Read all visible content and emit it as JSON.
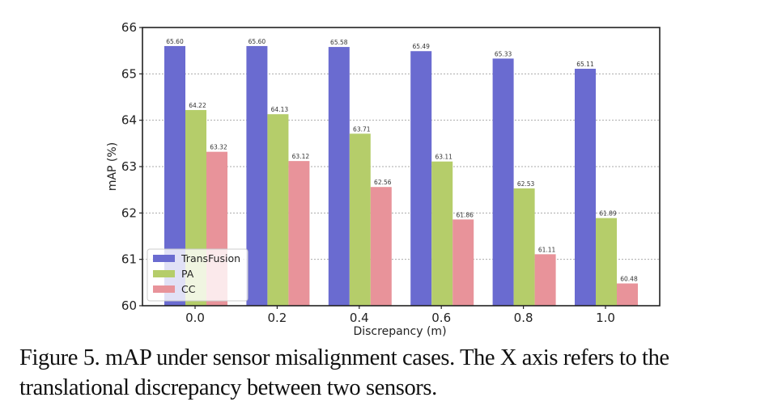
{
  "chart_data": {
    "type": "bar",
    "title": "",
    "xlabel": "Discrepancy (m)",
    "ylabel": "mAP (%)",
    "ylim": [
      60,
      66
    ],
    "yticks": [
      "60",
      "61",
      "62",
      "63",
      "64",
      "65",
      "66"
    ],
    "categories": [
      "0.0",
      "0.2",
      "0.4",
      "0.6",
      "0.8",
      "1.0"
    ],
    "grid": "horizontal dashed",
    "legend_position": "lower-left",
    "series": [
      {
        "name": "TransFusion",
        "color": "#6a6bd0",
        "values": [
          65.6,
          65.6,
          65.58,
          65.49,
          65.33,
          65.11
        ],
        "labels": [
          "65.60",
          "65.60",
          "65.58",
          "65.49",
          "65.33",
          "65.11"
        ]
      },
      {
        "name": "PA",
        "color": "#b5cd6a",
        "values": [
          64.22,
          64.13,
          63.71,
          63.11,
          62.53,
          61.89
        ],
        "labels": [
          "64.22",
          "64.13",
          "63.71",
          "63.11",
          "62.53",
          "61.89"
        ]
      },
      {
        "name": "CC",
        "color": "#e8939a",
        "values": [
          63.32,
          63.12,
          62.56,
          61.86,
          61.11,
          60.48
        ],
        "labels": [
          "63.32",
          "63.12",
          "62.56",
          "61.86",
          "61.11",
          "60.48"
        ]
      }
    ]
  },
  "caption": "Figure 5. mAP under sensor misalignment cases.  The X axis refers to the translational discrepancy between two sensors."
}
